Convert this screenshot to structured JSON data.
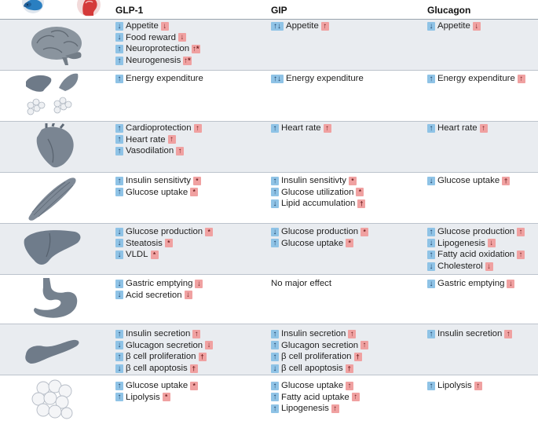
{
  "columns": [
    "GLP-1",
    "GIP",
    "Glucagon"
  ],
  "colors": {
    "arrow_bg": "#8fc3e6",
    "evidence_bg": "#f0a1a1",
    "row_shade": "#e9ecf0"
  },
  "header_icons": [
    "mouse-icon",
    "human-head-icon"
  ],
  "rows": [
    {
      "organ": "brain",
      "glp1": [
        {
          "arrow": "↓",
          "text": "Appetite",
          "evidence": "↓"
        },
        {
          "arrow": "↓",
          "text": "Food reward",
          "evidence": "↓"
        },
        {
          "arrow": "↑",
          "text": "Neuroprotection",
          "evidence": "↑*"
        },
        {
          "arrow": "↑",
          "text": "Neurogenesis",
          "evidence": "↑*"
        }
      ],
      "gip": [
        {
          "arrow": "↑↓",
          "text": "Appetite",
          "evidence": "↑"
        }
      ],
      "glucagon": [
        {
          "arrow": "↓",
          "text": "Appetite",
          "evidence": "↓"
        }
      ]
    },
    {
      "organ": "adipose-tissue",
      "glp1": [
        {
          "arrow": "↑",
          "text": "Energy expenditure",
          "evidence": ""
        }
      ],
      "gip": [
        {
          "arrow": "↑↓",
          "text": "Energy expenditure",
          "evidence": ""
        }
      ],
      "glucagon": [
        {
          "arrow": "↑",
          "text": "Energy expenditure",
          "evidence": "↑"
        }
      ]
    },
    {
      "organ": "heart",
      "glp1": [
        {
          "arrow": "↑",
          "text": "Cardioprotection",
          "evidence": "↑"
        },
        {
          "arrow": "↑",
          "text": "Heart rate",
          "evidence": "↑"
        },
        {
          "arrow": "↑",
          "text": "Vasodilation",
          "evidence": "↑"
        }
      ],
      "gip": [
        {
          "arrow": "↑",
          "text": "Heart rate",
          "evidence": "↑"
        }
      ],
      "glucagon": [
        {
          "arrow": "↑",
          "text": "Heart rate",
          "evidence": "↑"
        }
      ]
    },
    {
      "organ": "muscle",
      "glp1": [
        {
          "arrow": "↑",
          "text": "Insulin sensitivty",
          "evidence": "*"
        },
        {
          "arrow": "↑",
          "text": "Glucose uptake",
          "evidence": "*"
        }
      ],
      "gip": [
        {
          "arrow": "↑",
          "text": "Insulin sensitivty",
          "evidence": "*"
        },
        {
          "arrow": "↑",
          "text": "Glucose utilization",
          "evidence": "*"
        },
        {
          "arrow": "↓",
          "text": "Lipid accumulation",
          "evidence": "†"
        }
      ],
      "glucagon": [
        {
          "arrow": "↓",
          "text": "Glucose uptake",
          "evidence": "†"
        }
      ]
    },
    {
      "organ": "liver",
      "glp1": [
        {
          "arrow": "↓",
          "text": "Glucose production",
          "evidence": "*"
        },
        {
          "arrow": "↓",
          "text": "Steatosis",
          "evidence": "*"
        },
        {
          "arrow": "↓",
          "text": "VLDL",
          "evidence": "*"
        }
      ],
      "gip": [
        {
          "arrow": "↓",
          "text": "Glucose production",
          "evidence": "*"
        },
        {
          "arrow": "↑",
          "text": "Glucose uptake",
          "evidence": "*"
        }
      ],
      "glucagon": [
        {
          "arrow": "↑",
          "text": "Glucose production",
          "evidence": "↑"
        },
        {
          "arrow": "↓",
          "text": "Lipogenesis",
          "evidence": "↓"
        },
        {
          "arrow": "↑",
          "text": "Fatty acid oxidation",
          "evidence": "↑"
        },
        {
          "arrow": "↓",
          "text": "Cholesterol",
          "evidence": "↓"
        }
      ]
    },
    {
      "organ": "stomach",
      "glp1": [
        {
          "arrow": "↓",
          "text": "Gastric emptying",
          "evidence": "↓"
        },
        {
          "arrow": "↓",
          "text": "Acid secretion",
          "evidence": "↓"
        }
      ],
      "gip": [
        {
          "arrow": "",
          "text": "No major effect",
          "evidence": ""
        }
      ],
      "glucagon": [
        {
          "arrow": "↓",
          "text": "Gastric emptying",
          "evidence": "↓"
        }
      ]
    },
    {
      "organ": "pancreas",
      "glp1": [
        {
          "arrow": "↑",
          "text": "Insulin secretion",
          "evidence": "↑"
        },
        {
          "arrow": "↓",
          "text": "Glucagon secretion",
          "evidence": "↓"
        },
        {
          "arrow": "↑",
          "text": "β cell proliferation",
          "evidence": "†"
        },
        {
          "arrow": "↓",
          "text": "β cell apoptosis",
          "evidence": "†"
        }
      ],
      "gip": [
        {
          "arrow": "↑",
          "text": "Insulin secretion",
          "evidence": "↑"
        },
        {
          "arrow": "↑",
          "text": "Glucagon secretion",
          "evidence": "↑"
        },
        {
          "arrow": "↑",
          "text": "β cell proliferation",
          "evidence": "†"
        },
        {
          "arrow": "↓",
          "text": "β cell apoptosis",
          "evidence": "†"
        }
      ],
      "glucagon": [
        {
          "arrow": "↑",
          "text": "Insulin secretion",
          "evidence": "↑"
        }
      ]
    },
    {
      "organ": "white-adipose-tissue",
      "glp1": [
        {
          "arrow": "↑",
          "text": "Glucose uptake",
          "evidence": "*"
        },
        {
          "arrow": "↑",
          "text": "Lipolysis",
          "evidence": "*"
        }
      ],
      "gip": [
        {
          "arrow": "↑",
          "text": "Glucose uptake",
          "evidence": "↑"
        },
        {
          "arrow": "↑",
          "text": "Fatty acid uptake",
          "evidence": "↑"
        },
        {
          "arrow": "↑",
          "text": "Lipogenesis",
          "evidence": "↑"
        }
      ],
      "glucagon": [
        {
          "arrow": "↑",
          "text": "Lipolysis",
          "evidence": "↑"
        }
      ]
    }
  ]
}
